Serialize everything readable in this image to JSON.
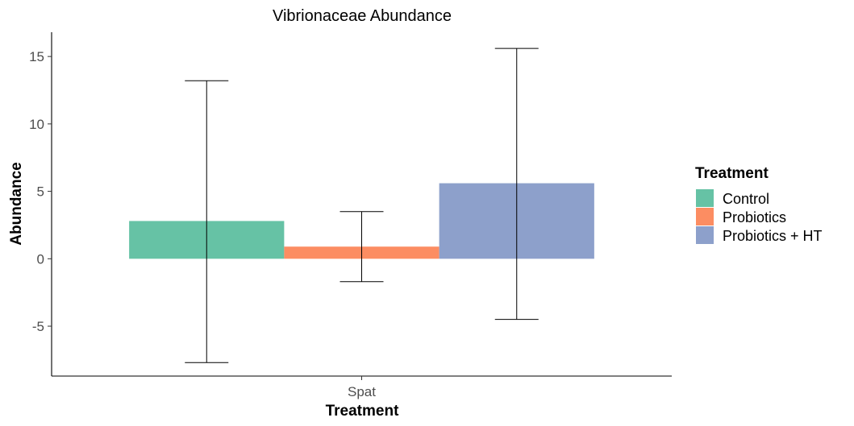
{
  "chart_data": {
    "type": "bar",
    "title": "Vibrionaceae Abundance",
    "xlabel": "Treatment",
    "ylabel": "Abundance",
    "categories": [
      "Spat"
    ],
    "ylim": [
      -8.7,
      16.8
    ],
    "yticks": [
      -5,
      0,
      5,
      10,
      15
    ],
    "grid": false,
    "legend": {
      "title": "Treatment",
      "position": "right"
    },
    "series": [
      {
        "name": "Control",
        "color": "#66c2a5",
        "values": [
          2.8
        ],
        "error_low": [
          -7.7
        ],
        "error_high": [
          13.2
        ]
      },
      {
        "name": "Probiotics",
        "color": "#fc8d62",
        "values": [
          0.9
        ],
        "error_low": [
          -1.7
        ],
        "error_high": [
          3.5
        ]
      },
      {
        "name": "Probiotics + HT",
        "color": "#8da0cb",
        "values": [
          5.6
        ],
        "error_low": [
          -4.5
        ],
        "error_high": [
          15.6
        ]
      }
    ]
  }
}
